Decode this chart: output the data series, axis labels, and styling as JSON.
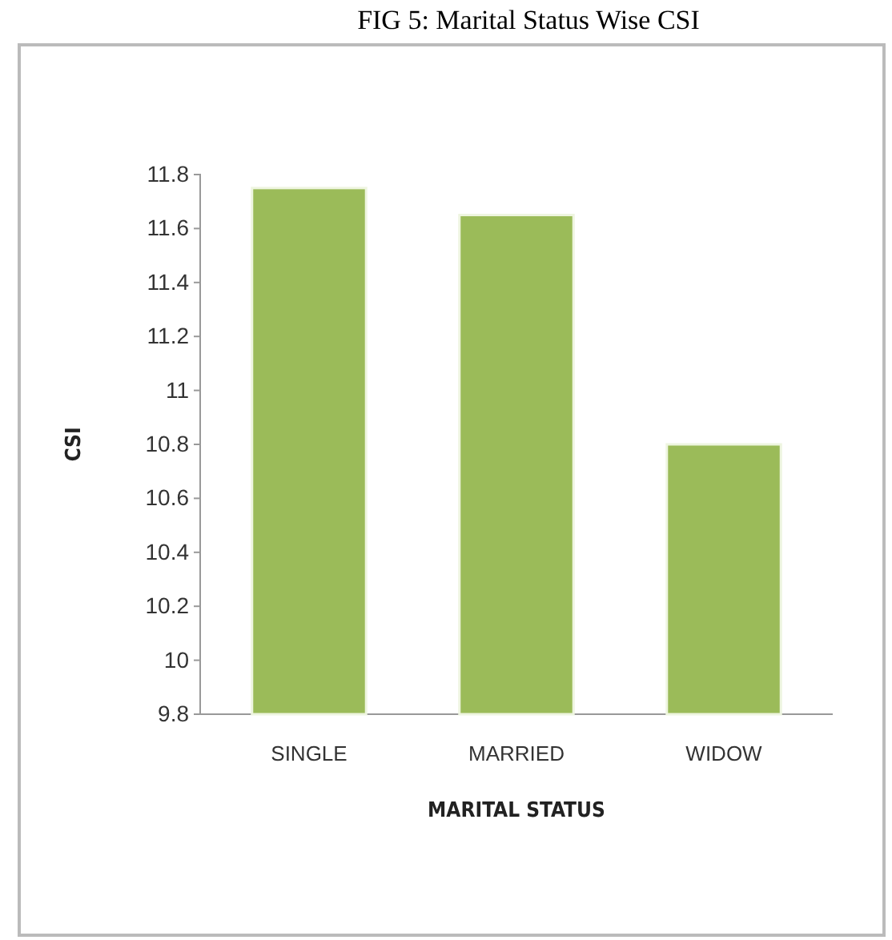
{
  "chart_data": {
    "type": "bar",
    "title": "FIG 5: Marital Status Wise CSI",
    "xlabel": "MARITAL STATUS",
    "ylabel": "CSI",
    "categories": [
      "SINGLE",
      "MARRIED",
      "WIDOW"
    ],
    "values": [
      11.75,
      11.65,
      10.8
    ],
    "color": "#9bbb59",
    "ylim": [
      9.8,
      11.8
    ],
    "yticks": [
      9.8,
      {
        "value": 10,
        "label": "10"
      },
      10.2,
      10.4,
      10.6,
      10.8,
      {
        "value": 11,
        "label": "11"
      },
      11.2,
      11.4,
      11.6,
      11.8
    ],
    "grid": false
  }
}
